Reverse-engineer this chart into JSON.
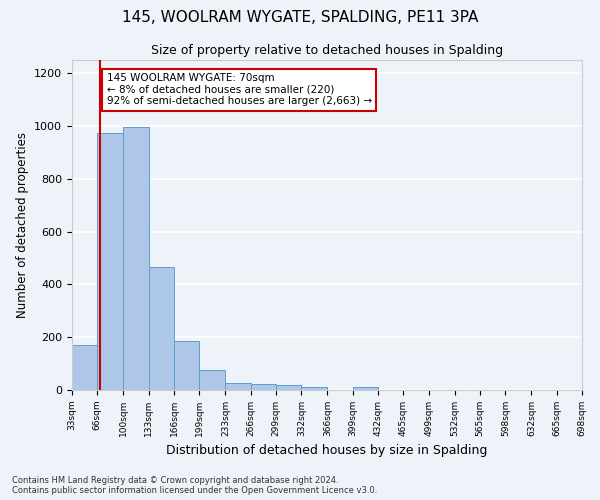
{
  "title1": "145, WOOLRAM WYGATE, SPALDING, PE11 3PA",
  "title2": "Size of property relative to detached houses in Spalding",
  "xlabel": "Distribution of detached houses by size in Spalding",
  "ylabel": "Number of detached properties",
  "footnote": "Contains HM Land Registry data © Crown copyright and database right 2024.\nContains public sector information licensed under the Open Government Licence v3.0.",
  "bar_edges": [
    33,
    66,
    100,
    133,
    166,
    199,
    233,
    266,
    299,
    332,
    366,
    399,
    432,
    465,
    499,
    532,
    565,
    598,
    632,
    665,
    698
  ],
  "bar_heights": [
    170,
    975,
    995,
    465,
    185,
    75,
    28,
    22,
    18,
    12,
    0,
    12,
    0,
    0,
    0,
    0,
    0,
    0,
    0,
    0
  ],
  "bar_color": "#aec6e8",
  "bar_edge_color": "#5a9fd4",
  "vline_x": 70,
  "vline_color": "#cc0000",
  "annotation_text": "145 WOOLRAM WYGATE: 70sqm\n← 8% of detached houses are smaller (220)\n92% of semi-detached houses are larger (2,663) →",
  "annotation_box_color": "#ffffff",
  "annotation_box_edge": "#cc0000",
  "ylim": [
    0,
    1250
  ],
  "yticks": [
    0,
    200,
    400,
    600,
    800,
    1000,
    1200
  ],
  "xlim": [
    33,
    698
  ],
  "tick_labels": [
    "33sqm",
    "66sqm",
    "100sqm",
    "133sqm",
    "166sqm",
    "199sqm",
    "233sqm",
    "266sqm",
    "299sqm",
    "332sqm",
    "366sqm",
    "399sqm",
    "432sqm",
    "465sqm",
    "499sqm",
    "532sqm",
    "565sqm",
    "598sqm",
    "632sqm",
    "665sqm",
    "698sqm"
  ],
  "bg_color": "#eef2f9",
  "grid_color": "#ffffff",
  "title1_fontsize": 11,
  "title2_fontsize": 9,
  "xlabel_fontsize": 9,
  "ylabel_fontsize": 8.5,
  "annotation_fontsize": 7.5
}
